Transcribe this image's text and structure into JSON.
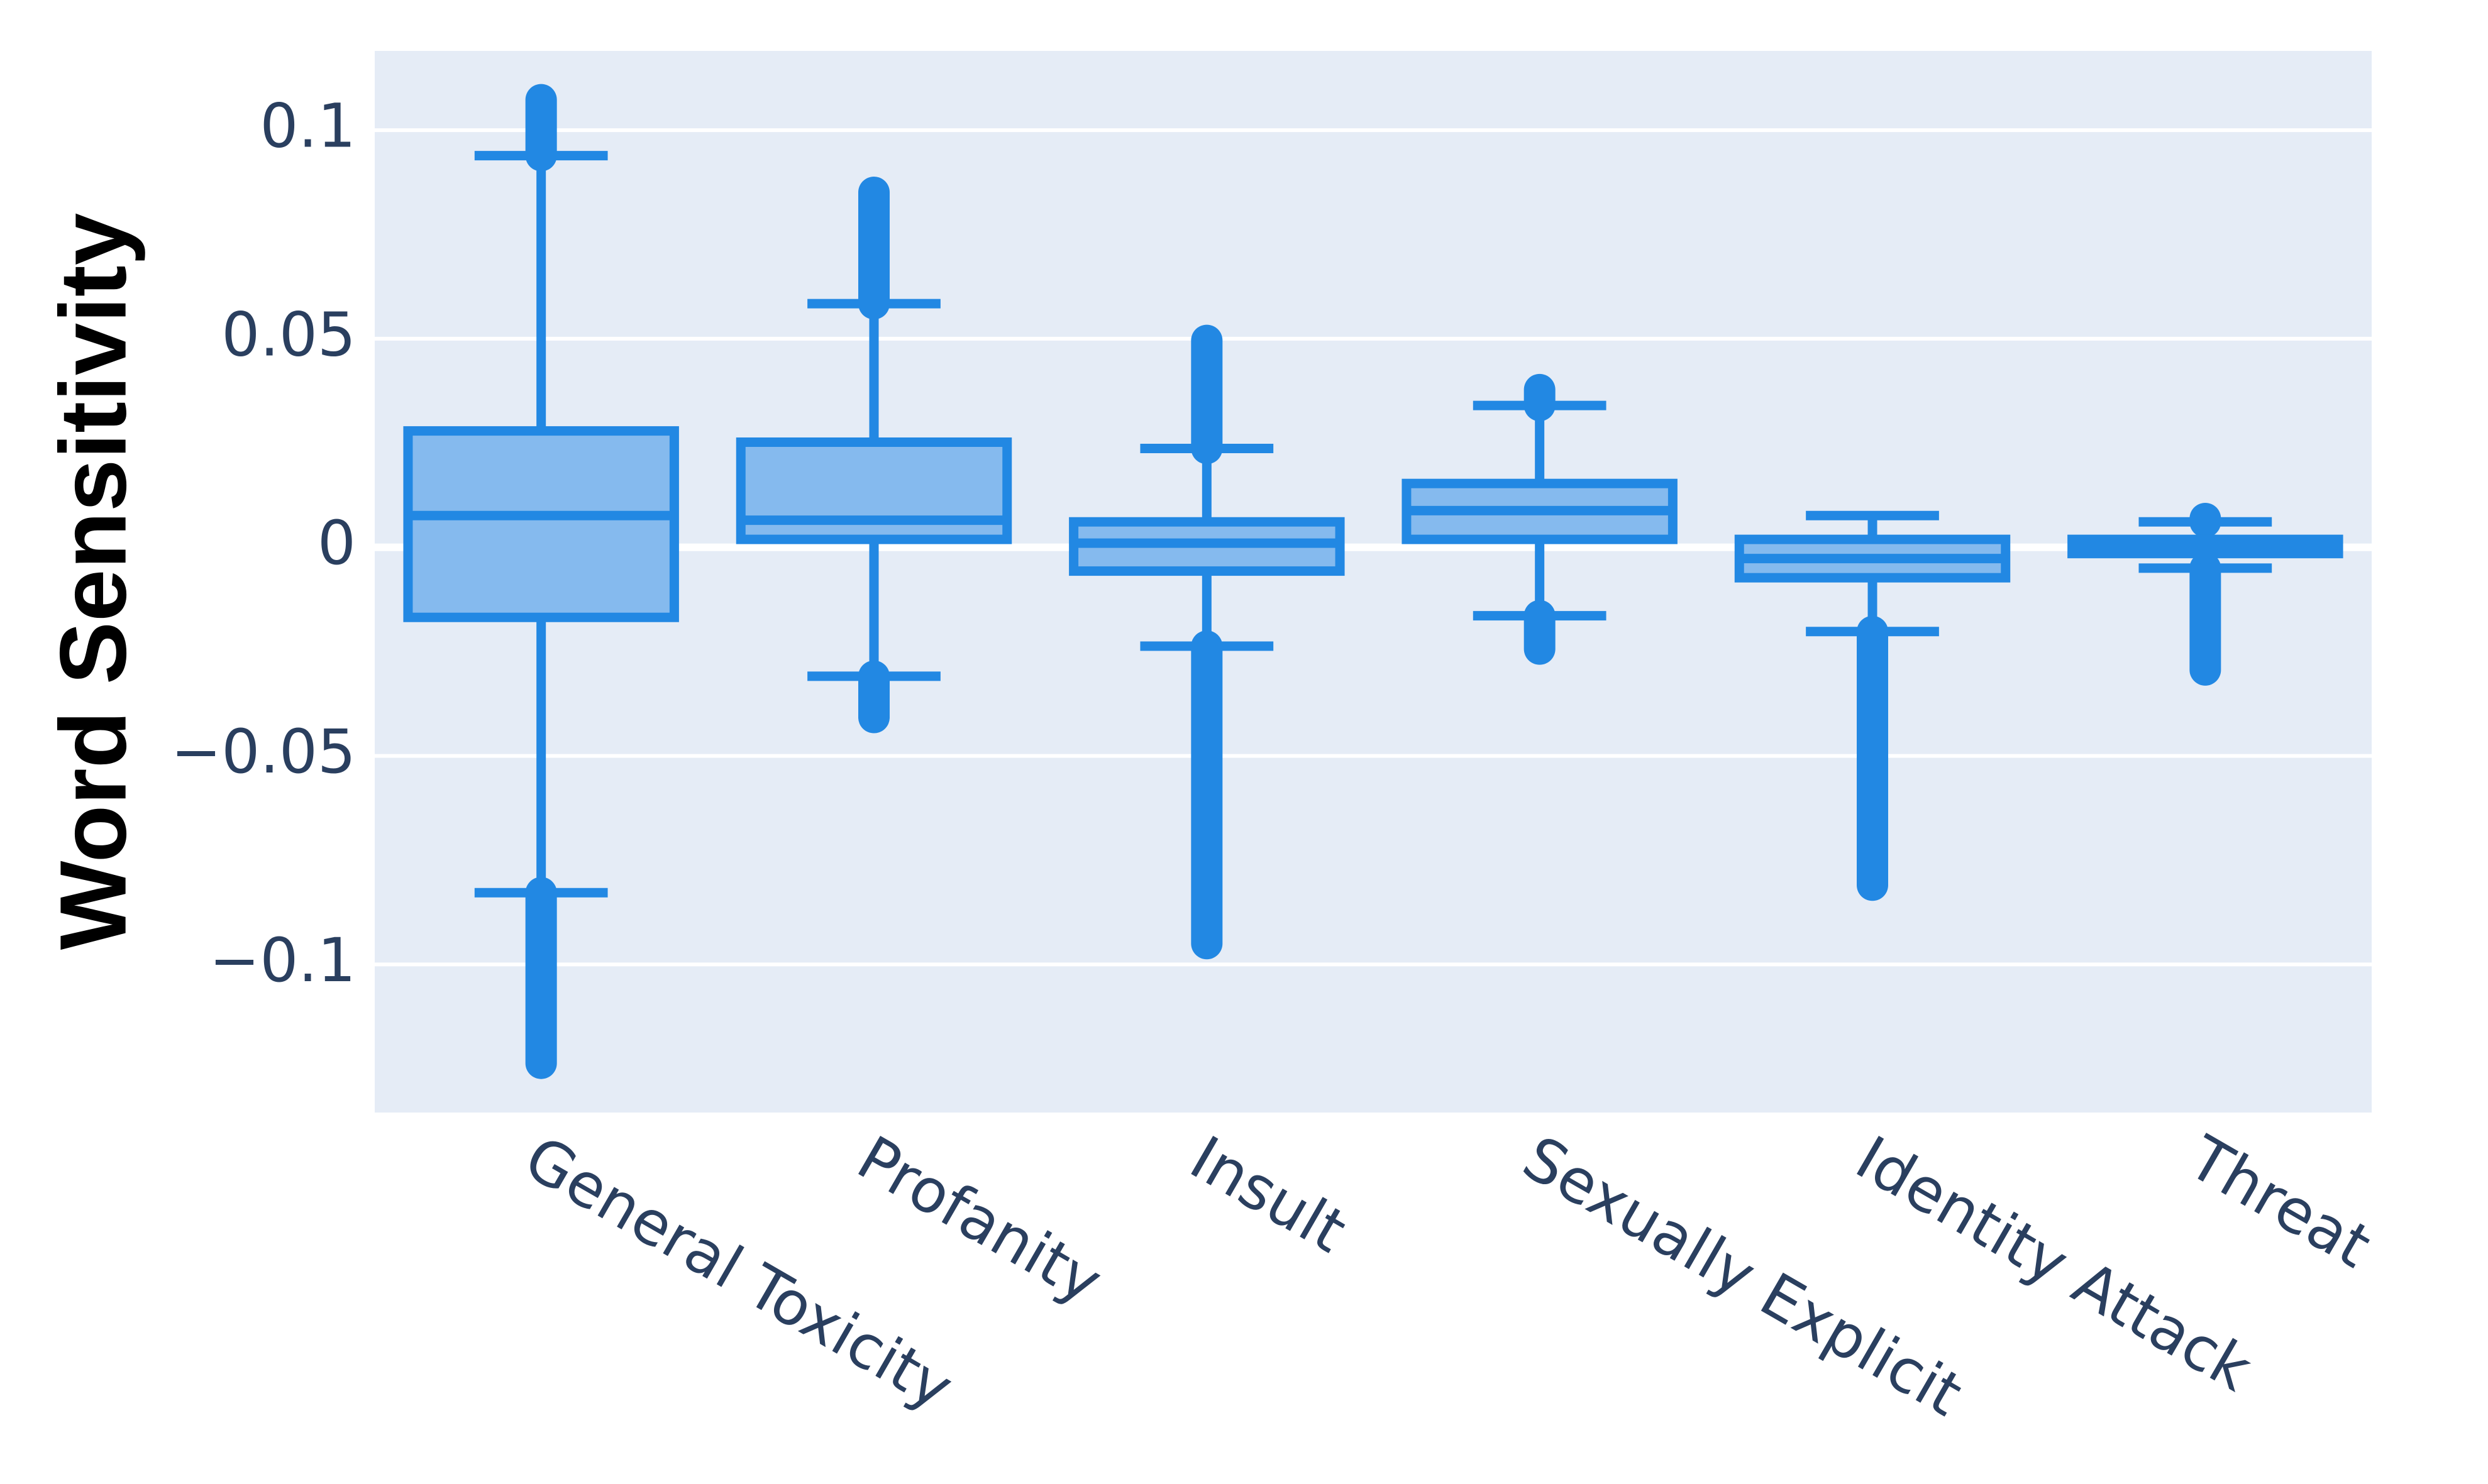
{
  "chart_data": {
    "type": "box",
    "ylabel": "Word Sensitivity",
    "categories": [
      "General Toxicity",
      "Profanity",
      "Insult",
      "Sexually Explicit",
      "Identity Attack",
      "Threat"
    ],
    "q1": [
      -0.0168,
      0.0019,
      -0.0057,
      0.0019,
      -0.0073,
      -0.0015
    ],
    "median": [
      0.0076,
      0.0065,
      0.001,
      0.0088,
      -0.0027,
      0
    ],
    "q3": [
      0.0279,
      0.0252,
      0.0061,
      0.0153,
      0.0019,
      0.0019
    ],
    "lower_whisker": [
      -0.0828,
      -0.0309,
      -0.0237,
      -0.0164,
      -0.0202,
      -0.005
    ],
    "upper_whisker": [
      0.0939,
      0.0584,
      0.0237,
      0.034,
      0.0076,
      0.0061
    ],
    "lowest_outlier": [
      -0.1237,
      -0.0408,
      -0.095,
      -0.0244,
      -0.081,
      -0.0294
    ],
    "highest_outlier": [
      0.1073,
      0.0851,
      0.0496,
      0.0378,
      null,
      0.0069
    ],
    "color": "#2288e3",
    "fill_color": "#85baee",
    "ylim": [
      -0.1355,
      0.119
    ],
    "yticks": [
      {
        "value": -0.1,
        "label": "−0.1"
      },
      {
        "value": -0.05,
        "label": "−0.05"
      },
      0,
      0.05,
      0.1
    ],
    "grid": true
  }
}
